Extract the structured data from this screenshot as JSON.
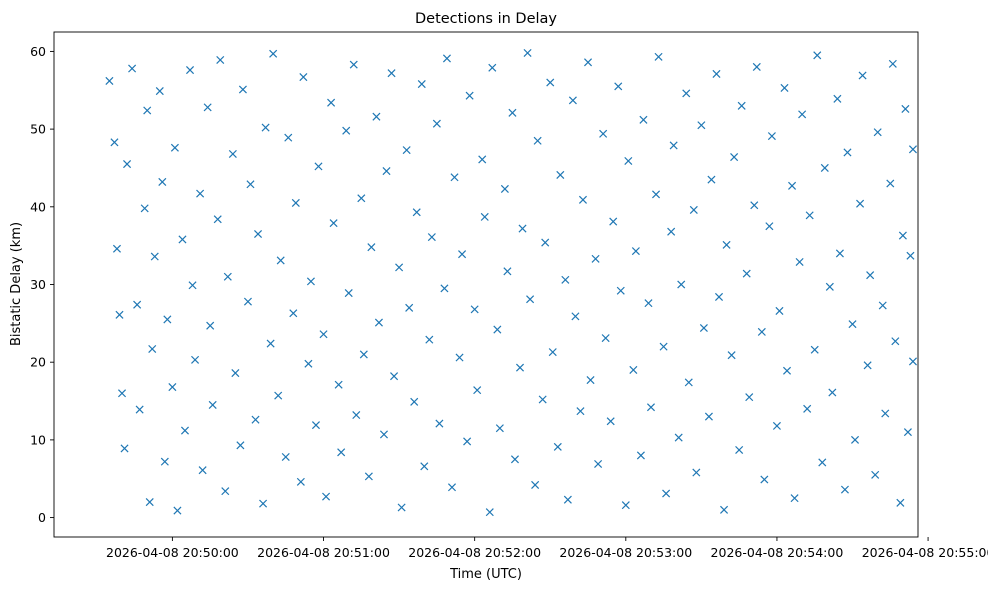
{
  "chart_data": {
    "type": "scatter",
    "title": "Detections in Delay",
    "xlabel": "Time (UTC)",
    "ylabel": "Bistatic Delay (km)",
    "xlim": [
      "2026-04-08 20:49:13",
      "2026-04-08 20:54:56"
    ],
    "ylim": [
      -2.5,
      62.5
    ],
    "x_ticks": [
      "2026-04-08 20:50:00",
      "2026-04-08 20:51:00",
      "2026-04-08 20:52:00",
      "2026-04-08 20:53:00",
      "2026-04-08 20:54:00",
      "2026-04-08 20:55:00"
    ],
    "y_ticks": [
      "0",
      "10",
      "20",
      "30",
      "40",
      "50",
      "60"
    ],
    "grid": false,
    "marker": "x",
    "color": "#1f77b4",
    "series": [
      {
        "points": [
          [
            "2026-04-08 20:49:35",
            56.2
          ],
          [
            "2026-04-08 20:49:37",
            48.3
          ],
          [
            "2026-04-08 20:49:38",
            34.6
          ],
          [
            "2026-04-08 20:49:39",
            26.1
          ],
          [
            "2026-04-08 20:49:40",
            16.0
          ],
          [
            "2026-04-08 20:49:41",
            8.9
          ],
          [
            "2026-04-08 20:49:42",
            45.5
          ],
          [
            "2026-04-08 20:49:44",
            57.8
          ],
          [
            "2026-04-08 20:49:46",
            27.4
          ],
          [
            "2026-04-08 20:49:47",
            13.9
          ],
          [
            "2026-04-08 20:49:49",
            39.8
          ],
          [
            "2026-04-08 20:49:50",
            52.4
          ],
          [
            "2026-04-08 20:49:51",
            2.0
          ],
          [
            "2026-04-08 20:49:52",
            21.7
          ],
          [
            "2026-04-08 20:49:53",
            33.6
          ],
          [
            "2026-04-08 20:49:55",
            54.9
          ],
          [
            "2026-04-08 20:49:56",
            43.2
          ],
          [
            "2026-04-08 20:49:57",
            7.2
          ],
          [
            "2026-04-08 20:49:58",
            25.5
          ],
          [
            "2026-04-08 20:50:00",
            16.8
          ],
          [
            "2026-04-08 20:50:01",
            47.6
          ],
          [
            "2026-04-08 20:50:02",
            0.9
          ],
          [
            "2026-04-08 20:50:04",
            35.8
          ],
          [
            "2026-04-08 20:50:05",
            11.2
          ],
          [
            "2026-04-08 20:50:07",
            57.6
          ],
          [
            "2026-04-08 20:50:08",
            29.9
          ],
          [
            "2026-04-08 20:50:09",
            20.3
          ],
          [
            "2026-04-08 20:50:11",
            41.7
          ],
          [
            "2026-04-08 20:50:12",
            6.1
          ],
          [
            "2026-04-08 20:50:14",
            52.8
          ],
          [
            "2026-04-08 20:50:15",
            24.7
          ],
          [
            "2026-04-08 20:50:16",
            14.5
          ],
          [
            "2026-04-08 20:50:18",
            38.4
          ],
          [
            "2026-04-08 20:50:19",
            58.9
          ],
          [
            "2026-04-08 20:50:21",
            3.4
          ],
          [
            "2026-04-08 20:50:22",
            31.0
          ],
          [
            "2026-04-08 20:50:24",
            46.8
          ],
          [
            "2026-04-08 20:50:25",
            18.6
          ],
          [
            "2026-04-08 20:50:27",
            9.3
          ],
          [
            "2026-04-08 20:50:28",
            55.1
          ],
          [
            "2026-04-08 20:50:30",
            27.8
          ],
          [
            "2026-04-08 20:50:31",
            42.9
          ],
          [
            "2026-04-08 20:50:33",
            12.6
          ],
          [
            "2026-04-08 20:50:34",
            36.5
          ],
          [
            "2026-04-08 20:50:36",
            1.8
          ],
          [
            "2026-04-08 20:50:37",
            50.2
          ],
          [
            "2026-04-08 20:50:39",
            22.4
          ],
          [
            "2026-04-08 20:50:40",
            59.7
          ],
          [
            "2026-04-08 20:50:42",
            15.7
          ],
          [
            "2026-04-08 20:50:43",
            33.1
          ],
          [
            "2026-04-08 20:50:45",
            7.8
          ],
          [
            "2026-04-08 20:50:46",
            48.9
          ],
          [
            "2026-04-08 20:50:48",
            26.3
          ],
          [
            "2026-04-08 20:50:49",
            40.5
          ],
          [
            "2026-04-08 20:50:51",
            4.6
          ],
          [
            "2026-04-08 20:50:52",
            56.7
          ],
          [
            "2026-04-08 20:50:54",
            19.8
          ],
          [
            "2026-04-08 20:50:55",
            30.4
          ],
          [
            "2026-04-08 20:50:57",
            11.9
          ],
          [
            "2026-04-08 20:50:58",
            45.2
          ],
          [
            "2026-04-08 20:51:00",
            23.6
          ],
          [
            "2026-04-08 20:51:01",
            2.7
          ],
          [
            "2026-04-08 20:51:03",
            53.4
          ],
          [
            "2026-04-08 20:51:04",
            37.9
          ],
          [
            "2026-04-08 20:51:06",
            17.1
          ],
          [
            "2026-04-08 20:51:07",
            8.4
          ],
          [
            "2026-04-08 20:51:09",
            49.8
          ],
          [
            "2026-04-08 20:51:10",
            28.9
          ],
          [
            "2026-04-08 20:51:12",
            58.3
          ],
          [
            "2026-04-08 20:51:13",
            13.2
          ],
          [
            "2026-04-08 20:51:15",
            41.1
          ],
          [
            "2026-04-08 20:51:16",
            21.0
          ],
          [
            "2026-04-08 20:51:18",
            5.3
          ],
          [
            "2026-04-08 20:51:19",
            34.8
          ],
          [
            "2026-04-08 20:51:21",
            51.6
          ],
          [
            "2026-04-08 20:51:22",
            25.1
          ],
          [
            "2026-04-08 20:51:24",
            10.7
          ],
          [
            "2026-04-08 20:51:25",
            44.6
          ],
          [
            "2026-04-08 20:51:27",
            57.2
          ],
          [
            "2026-04-08 20:51:28",
            18.2
          ],
          [
            "2026-04-08 20:51:30",
            32.2
          ],
          [
            "2026-04-08 20:51:31",
            1.3
          ],
          [
            "2026-04-08 20:51:33",
            47.3
          ],
          [
            "2026-04-08 20:51:34",
            27.0
          ],
          [
            "2026-04-08 20:51:36",
            14.9
          ],
          [
            "2026-04-08 20:51:37",
            39.3
          ],
          [
            "2026-04-08 20:51:39",
            55.8
          ],
          [
            "2026-04-08 20:51:40",
            6.6
          ],
          [
            "2026-04-08 20:51:42",
            22.9
          ],
          [
            "2026-04-08 20:51:43",
            36.1
          ],
          [
            "2026-04-08 20:51:45",
            50.7
          ],
          [
            "2026-04-08 20:51:46",
            12.1
          ],
          [
            "2026-04-08 20:51:48",
            29.5
          ],
          [
            "2026-04-08 20:51:49",
            59.1
          ],
          [
            "2026-04-08 20:51:51",
            3.9
          ],
          [
            "2026-04-08 20:51:52",
            43.8
          ],
          [
            "2026-04-08 20:51:54",
            20.6
          ],
          [
            "2026-04-08 20:51:55",
            33.9
          ],
          [
            "2026-04-08 20:51:57",
            9.8
          ],
          [
            "2026-04-08 20:51:58",
            54.3
          ],
          [
            "2026-04-08 20:52:00",
            26.8
          ],
          [
            "2026-04-08 20:52:01",
            16.4
          ],
          [
            "2026-04-08 20:52:03",
            46.1
          ],
          [
            "2026-04-08 20:52:04",
            38.7
          ],
          [
            "2026-04-08 20:52:06",
            0.7
          ],
          [
            "2026-04-08 20:52:07",
            57.9
          ],
          [
            "2026-04-08 20:52:09",
            24.2
          ],
          [
            "2026-04-08 20:52:10",
            11.5
          ],
          [
            "2026-04-08 20:52:12",
            42.3
          ],
          [
            "2026-04-08 20:52:13",
            31.7
          ],
          [
            "2026-04-08 20:52:15",
            52.1
          ],
          [
            "2026-04-08 20:52:16",
            7.5
          ],
          [
            "2026-04-08 20:52:18",
            19.3
          ],
          [
            "2026-04-08 20:52:19",
            37.2
          ],
          [
            "2026-04-08 20:52:21",
            59.8
          ],
          [
            "2026-04-08 20:52:22",
            28.1
          ],
          [
            "2026-04-08 20:52:24",
            4.2
          ],
          [
            "2026-04-08 20:52:25",
            48.5
          ],
          [
            "2026-04-08 20:52:27",
            15.2
          ],
          [
            "2026-04-08 20:52:28",
            35.4
          ],
          [
            "2026-04-08 20:52:30",
            56.0
          ],
          [
            "2026-04-08 20:52:31",
            21.3
          ],
          [
            "2026-04-08 20:52:33",
            9.1
          ],
          [
            "2026-04-08 20:52:34",
            44.1
          ],
          [
            "2026-04-08 20:52:36",
            30.6
          ],
          [
            "2026-04-08 20:52:37",
            2.3
          ],
          [
            "2026-04-08 20:52:39",
            53.7
          ],
          [
            "2026-04-08 20:52:40",
            25.9
          ],
          [
            "2026-04-08 20:52:42",
            13.7
          ],
          [
            "2026-04-08 20:52:43",
            40.9
          ],
          [
            "2026-04-08 20:52:45",
            58.6
          ],
          [
            "2026-04-08 20:52:46",
            17.7
          ],
          [
            "2026-04-08 20:52:48",
            33.3
          ],
          [
            "2026-04-08 20:52:49",
            6.9
          ],
          [
            "2026-04-08 20:52:51",
            49.4
          ],
          [
            "2026-04-08 20:52:52",
            23.1
          ],
          [
            "2026-04-08 20:52:54",
            12.4
          ],
          [
            "2026-04-08 20:52:55",
            38.1
          ],
          [
            "2026-04-08 20:52:57",
            55.5
          ],
          [
            "2026-04-08 20:52:58",
            29.2
          ],
          [
            "2026-04-08 20:53:00",
            1.6
          ],
          [
            "2026-04-08 20:53:01",
            45.9
          ],
          [
            "2026-04-08 20:53:03",
            19.0
          ],
          [
            "2026-04-08 20:53:04",
            34.3
          ],
          [
            "2026-04-08 20:53:06",
            8.0
          ],
          [
            "2026-04-08 20:53:07",
            51.2
          ],
          [
            "2026-04-08 20:53:09",
            27.6
          ],
          [
            "2026-04-08 20:53:10",
            14.2
          ],
          [
            "2026-04-08 20:53:12",
            41.6
          ],
          [
            "2026-04-08 20:53:13",
            59.3
          ],
          [
            "2026-04-08 20:53:15",
            22.0
          ],
          [
            "2026-04-08 20:53:16",
            3.1
          ],
          [
            "2026-04-08 20:53:18",
            36.8
          ],
          [
            "2026-04-08 20:53:19",
            47.9
          ],
          [
            "2026-04-08 20:53:21",
            10.3
          ],
          [
            "2026-04-08 20:53:22",
            30.0
          ],
          [
            "2026-04-08 20:53:24",
            54.6
          ],
          [
            "2026-04-08 20:53:25",
            17.4
          ],
          [
            "2026-04-08 20:53:27",
            39.6
          ],
          [
            "2026-04-08 20:53:28",
            5.8
          ],
          [
            "2026-04-08 20:53:30",
            50.5
          ],
          [
            "2026-04-08 20:53:31",
            24.4
          ],
          [
            "2026-04-08 20:53:33",
            13.0
          ],
          [
            "2026-04-08 20:53:34",
            43.5
          ],
          [
            "2026-04-08 20:53:36",
            57.1
          ],
          [
            "2026-04-08 20:53:37",
            28.4
          ],
          [
            "2026-04-08 20:53:39",
            1.0
          ],
          [
            "2026-04-08 20:53:40",
            35.1
          ],
          [
            "2026-04-08 20:53:42",
            20.9
          ],
          [
            "2026-04-08 20:53:43",
            46.4
          ],
          [
            "2026-04-08 20:53:45",
            8.7
          ],
          [
            "2026-04-08 20:53:46",
            53.0
          ],
          [
            "2026-04-08 20:53:48",
            31.4
          ],
          [
            "2026-04-08 20:53:49",
            15.5
          ],
          [
            "2026-04-08 20:53:51",
            40.2
          ],
          [
            "2026-04-08 20:53:52",
            58.0
          ],
          [
            "2026-04-08 20:53:54",
            23.9
          ],
          [
            "2026-04-08 20:53:55",
            4.9
          ],
          [
            "2026-04-08 20:53:57",
            37.5
          ],
          [
            "2026-04-08 20:53:58",
            49.1
          ],
          [
            "2026-04-08 20:54:00",
            11.8
          ],
          [
            "2026-04-08 20:54:01",
            26.6
          ],
          [
            "2026-04-08 20:54:03",
            55.3
          ],
          [
            "2026-04-08 20:54:04",
            18.9
          ],
          [
            "2026-04-08 20:54:06",
            42.7
          ],
          [
            "2026-04-08 20:54:07",
            2.5
          ],
          [
            "2026-04-08 20:54:09",
            32.9
          ],
          [
            "2026-04-08 20:54:10",
            51.9
          ],
          [
            "2026-04-08 20:54:12",
            14.0
          ],
          [
            "2026-04-08 20:54:13",
            38.9
          ],
          [
            "2026-04-08 20:54:15",
            21.6
          ],
          [
            "2026-04-08 20:54:16",
            59.5
          ],
          [
            "2026-04-08 20:54:18",
            7.1
          ],
          [
            "2026-04-08 20:54:19",
            45.0
          ],
          [
            "2026-04-08 20:54:21",
            29.7
          ],
          [
            "2026-04-08 20:54:22",
            16.1
          ],
          [
            "2026-04-08 20:54:24",
            53.9
          ],
          [
            "2026-04-08 20:54:25",
            34.0
          ],
          [
            "2026-04-08 20:54:27",
            3.6
          ],
          [
            "2026-04-08 20:54:28",
            47.0
          ],
          [
            "2026-04-08 20:54:30",
            24.9
          ],
          [
            "2026-04-08 20:54:31",
            10.0
          ],
          [
            "2026-04-08 20:54:33",
            40.4
          ],
          [
            "2026-04-08 20:54:34",
            56.9
          ],
          [
            "2026-04-08 20:54:36",
            19.6
          ],
          [
            "2026-04-08 20:54:37",
            31.2
          ],
          [
            "2026-04-08 20:54:39",
            5.5
          ],
          [
            "2026-04-08 20:54:40",
            49.6
          ],
          [
            "2026-04-08 20:54:42",
            27.3
          ],
          [
            "2026-04-08 20:54:43",
            13.4
          ],
          [
            "2026-04-08 20:54:45",
            43.0
          ],
          [
            "2026-04-08 20:54:46",
            58.4
          ],
          [
            "2026-04-08 20:54:47",
            22.7
          ],
          [
            "2026-04-08 20:54:49",
            1.9
          ],
          [
            "2026-04-08 20:54:50",
            36.3
          ],
          [
            "2026-04-08 20:54:51",
            52.6
          ],
          [
            "2026-04-08 20:54:52",
            11.0
          ],
          [
            "2026-04-08 20:54:53",
            33.7
          ],
          [
            "2026-04-08 20:54:54",
            20.1
          ],
          [
            "2026-04-08 20:54:54",
            47.4
          ]
        ]
      }
    ]
  }
}
